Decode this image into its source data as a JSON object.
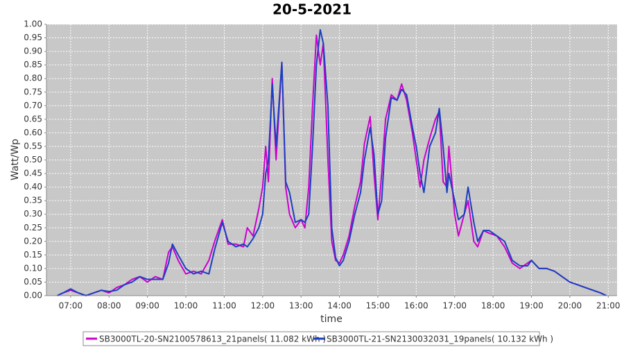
{
  "chart_data": {
    "type": "line",
    "title": "20-5-2021",
    "x_label": "time",
    "y_label": "Watt/Wp",
    "x": [
      6.65,
      6.8,
      7.0,
      7.2,
      7.4,
      7.6,
      7.8,
      8.0,
      8.2,
      8.4,
      8.6,
      8.8,
      9.0,
      9.2,
      9.4,
      9.55,
      9.65,
      9.8,
      10.0,
      10.2,
      10.4,
      10.6,
      10.75,
      10.95,
      11.1,
      11.3,
      11.5,
      11.6,
      11.75,
      11.9,
      12.0,
      12.08,
      12.15,
      12.25,
      12.35,
      12.5,
      12.6,
      12.7,
      12.85,
      13.0,
      13.1,
      13.2,
      13.3,
      13.4,
      13.5,
      13.58,
      13.7,
      13.8,
      13.9,
      14.0,
      14.1,
      14.25,
      14.4,
      14.55,
      14.65,
      14.8,
      14.9,
      15.0,
      15.1,
      15.2,
      15.35,
      15.5,
      15.62,
      15.75,
      15.9,
      16.0,
      16.1,
      16.2,
      16.35,
      16.5,
      16.6,
      16.7,
      16.8,
      16.85,
      17.0,
      17.1,
      17.25,
      17.35,
      17.5,
      17.6,
      17.75,
      17.9,
      18.1,
      18.3,
      18.5,
      18.7,
      18.9,
      19.0,
      19.2,
      19.4,
      19.6,
      19.8,
      20.0,
      20.2,
      20.4,
      20.6,
      20.8,
      20.95
    ],
    "series": [
      {
        "name": "SB3000TL-20-SN2100578613_21panels( 11.082 kWh )",
        "color": "#cc00cc",
        "values": [
          0,
          0.01,
          0.02,
          0.01,
          0.0,
          0.01,
          0.02,
          0.01,
          0.03,
          0.04,
          0.06,
          0.07,
          0.05,
          0.07,
          0.06,
          0.16,
          0.18,
          0.13,
          0.08,
          0.09,
          0.08,
          0.13,
          0.2,
          0.28,
          0.19,
          0.19,
          0.18,
          0.25,
          0.22,
          0.32,
          0.4,
          0.55,
          0.42,
          0.8,
          0.5,
          0.86,
          0.4,
          0.3,
          0.25,
          0.28,
          0.25,
          0.4,
          0.7,
          0.96,
          0.85,
          0.93,
          0.5,
          0.2,
          0.13,
          0.12,
          0.15,
          0.22,
          0.33,
          0.42,
          0.56,
          0.66,
          0.45,
          0.28,
          0.45,
          0.65,
          0.74,
          0.72,
          0.78,
          0.72,
          0.6,
          0.5,
          0.4,
          0.5,
          0.58,
          0.65,
          0.68,
          0.42,
          0.4,
          0.55,
          0.3,
          0.22,
          0.3,
          0.35,
          0.2,
          0.18,
          0.24,
          0.23,
          0.22,
          0.18,
          0.12,
          0.1,
          0.12,
          0.13,
          0.1,
          0.1,
          0.09,
          0.07,
          0.05,
          0.04,
          0.03,
          0.02,
          0.01,
          0.0
        ]
      },
      {
        "name": "SB3000TL-21-SN2130032031_19panels( 10.132 kWh )",
        "color": "#1a3fbf",
        "values": [
          0,
          0.01,
          0.025,
          0.01,
          0.0,
          0.01,
          0.02,
          0.015,
          0.02,
          0.04,
          0.05,
          0.07,
          0.06,
          0.06,
          0.06,
          0.12,
          0.19,
          0.15,
          0.1,
          0.08,
          0.09,
          0.08,
          0.17,
          0.27,
          0.2,
          0.18,
          0.19,
          0.18,
          0.21,
          0.25,
          0.3,
          0.45,
          0.5,
          0.78,
          0.55,
          0.86,
          0.42,
          0.38,
          0.27,
          0.28,
          0.27,
          0.3,
          0.55,
          0.85,
          0.98,
          0.93,
          0.7,
          0.25,
          0.14,
          0.11,
          0.13,
          0.2,
          0.3,
          0.38,
          0.5,
          0.62,
          0.52,
          0.3,
          0.35,
          0.58,
          0.73,
          0.72,
          0.76,
          0.74,
          0.62,
          0.55,
          0.45,
          0.38,
          0.55,
          0.6,
          0.69,
          0.55,
          0.38,
          0.45,
          0.35,
          0.28,
          0.3,
          0.4,
          0.27,
          0.2,
          0.24,
          0.24,
          0.22,
          0.2,
          0.13,
          0.11,
          0.11,
          0.13,
          0.1,
          0.1,
          0.09,
          0.07,
          0.05,
          0.04,
          0.03,
          0.02,
          0.01,
          0.0
        ]
      }
    ],
    "xlim": [
      6.37,
      21.23
    ],
    "xticks": [
      {
        "value": 7,
        "label": "07:00"
      },
      {
        "value": 8,
        "label": "08:00"
      },
      {
        "value": 9,
        "label": "09:00"
      },
      {
        "value": 10,
        "label": "10:00"
      },
      {
        "value": 11,
        "label": "11:00"
      },
      {
        "value": 12,
        "label": "12:00"
      },
      {
        "value": 13,
        "label": "13:00"
      },
      {
        "value": 14,
        "label": "14:00"
      },
      {
        "value": 15,
        "label": "15:00"
      },
      {
        "value": 16,
        "label": "16:00"
      },
      {
        "value": 17,
        "label": "17:00"
      },
      {
        "value": 18,
        "label": "18:00"
      },
      {
        "value": 19,
        "label": "19:00"
      },
      {
        "value": 20,
        "label": "20:00"
      },
      {
        "value": 21,
        "label": "21:00"
      }
    ],
    "ylim": [
      0,
      1
    ],
    "yticks": [
      {
        "value": 0,
        "label": "0.00"
      },
      {
        "value": 0.05,
        "label": "0.05"
      },
      {
        "value": 0.1,
        "label": "0.10"
      },
      {
        "value": 0.15,
        "label": "0.15"
      },
      {
        "value": 0.2,
        "label": "0.20"
      },
      {
        "value": 0.25,
        "label": "0.25"
      },
      {
        "value": 0.3,
        "label": "0.30"
      },
      {
        "value": 0.35,
        "label": "0.35"
      },
      {
        "value": 0.4,
        "label": "0.40"
      },
      {
        "value": 0.45,
        "label": "0.45"
      },
      {
        "value": 0.5,
        "label": "0.50"
      },
      {
        "value": 0.55,
        "label": "0.55"
      },
      {
        "value": 0.6,
        "label": "0.60"
      },
      {
        "value": 0.65,
        "label": "0.65"
      },
      {
        "value": 0.7,
        "label": "0.70"
      },
      {
        "value": 0.75,
        "label": "0.75"
      },
      {
        "value": 0.8,
        "label": "0.80"
      },
      {
        "value": 0.85,
        "label": "0.85"
      },
      {
        "value": 0.9,
        "label": "0.90"
      },
      {
        "value": 0.95,
        "label": "0.95"
      },
      {
        "value": 1,
        "label": "1.00"
      }
    ],
    "grid": true,
    "legend": "bottom"
  }
}
